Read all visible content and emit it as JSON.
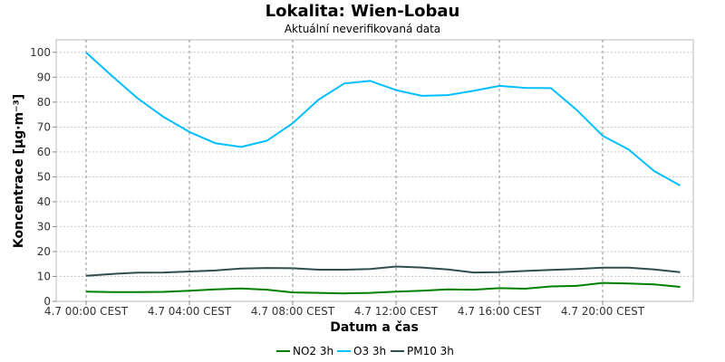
{
  "chart_data": {
    "type": "line",
    "title": "Lokalita: Wien-Lobau",
    "subtitle": "Aktuální neverifikovaná data",
    "xlabel": "Datum a čas",
    "ylabel": "Koncentrace [µg·m⁻³]",
    "ylim": [
      0,
      105
    ],
    "yticks": [
      0,
      10,
      20,
      30,
      40,
      50,
      60,
      70,
      80,
      90,
      100
    ],
    "x_ticks": [
      "4.7 00:00 CEST",
      "4.7 04:00 CEST",
      "4.7 08:00 CEST",
      "4.7 12:00 CEST",
      "4.7 16:00 CEST",
      "4.7 20:00 CEST"
    ],
    "x_tick_hours": [
      0,
      4,
      8,
      12,
      16,
      20
    ],
    "x_hours": [
      0,
      1,
      2,
      3,
      4,
      5,
      6,
      7,
      8,
      9,
      10,
      11,
      12,
      13,
      14,
      15,
      16,
      17,
      18,
      19,
      20,
      21,
      22,
      23
    ],
    "grid": true,
    "legend_position": "bottom-center",
    "series": [
      {
        "name": "NO2 3h",
        "color": "#008000",
        "values": [
          3.9,
          3.7,
          3.7,
          3.8,
          4.3,
          4.8,
          5.2,
          4.7,
          3.6,
          3.4,
          3.2,
          3.4,
          3.9,
          4.3,
          4.8,
          4.7,
          5.3,
          5.1,
          6.0,
          6.2,
          7.4,
          7.2,
          6.8,
          5.8
        ]
      },
      {
        "name": "O3 3h",
        "color": "#00BFFF",
        "values": [
          99.9,
          90.5,
          81.5,
          74.0,
          68.0,
          63.5,
          62.0,
          64.5,
          71.5,
          81.0,
          87.5,
          88.5,
          84.8,
          82.5,
          82.8,
          84.5,
          86.5,
          85.7,
          85.6,
          76.8,
          66.5,
          61.0,
          52.3,
          46.5
        ]
      },
      {
        "name": "PM10 3h",
        "color": "#2F4F4F",
        "values": [
          10.3,
          11.0,
          11.5,
          11.6,
          12.0,
          12.4,
          13.2,
          13.4,
          13.3,
          12.7,
          12.7,
          13.0,
          14.0,
          13.6,
          12.8,
          11.6,
          11.7,
          12.2,
          12.6,
          13.0,
          13.5,
          13.5,
          12.8,
          11.7
        ]
      }
    ]
  }
}
